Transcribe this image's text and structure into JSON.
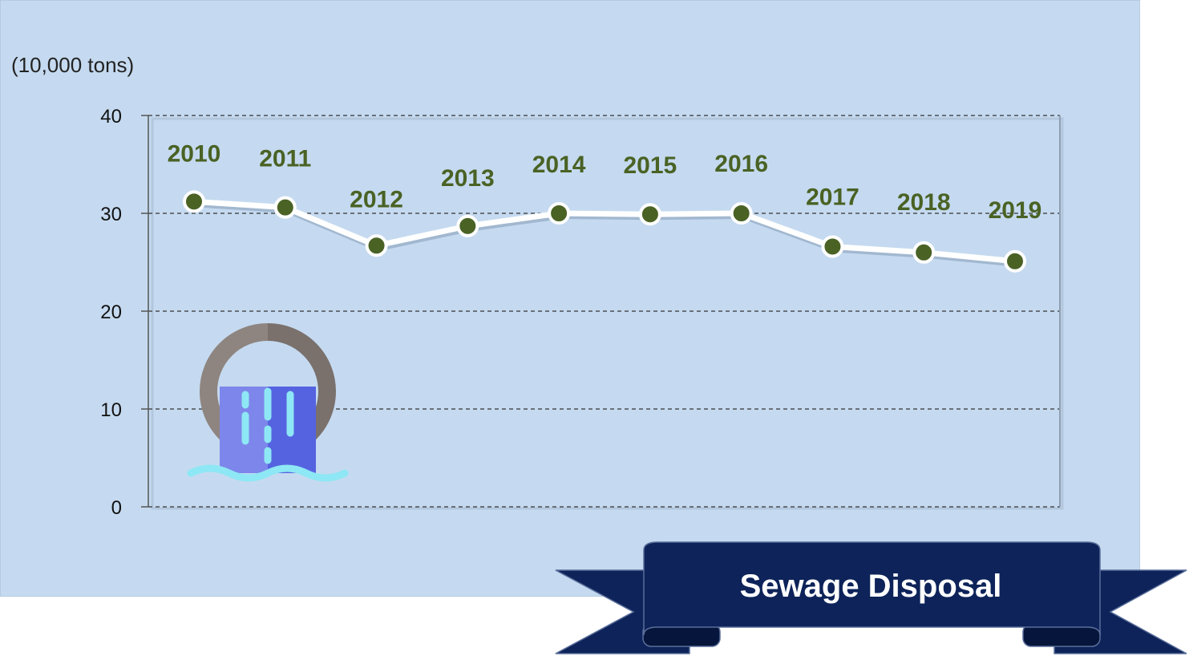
{
  "chart_data": {
    "type": "line",
    "unit_label": "(10,000 tons)",
    "ylim": [
      0,
      40
    ],
    "yticks": [
      "0",
      "10",
      "20",
      "30",
      "40"
    ],
    "grid": true,
    "categories": [
      "2010",
      "2011",
      "2012",
      "2013",
      "2014",
      "2015",
      "2016",
      "2017",
      "2018",
      "2019"
    ],
    "values": [
      31.2,
      30.6,
      26.7,
      28.7,
      30.0,
      29.9,
      30.0,
      26.6,
      26.0,
      25.1
    ],
    "title": "Sewage Disposal"
  },
  "colors": {
    "panel_background": "#c5daf0",
    "line": "#ffffff",
    "marker": "#4a6224",
    "label": "#4a6224",
    "banner": "#0d2359"
  },
  "icon": "sewage-pipe-icon"
}
